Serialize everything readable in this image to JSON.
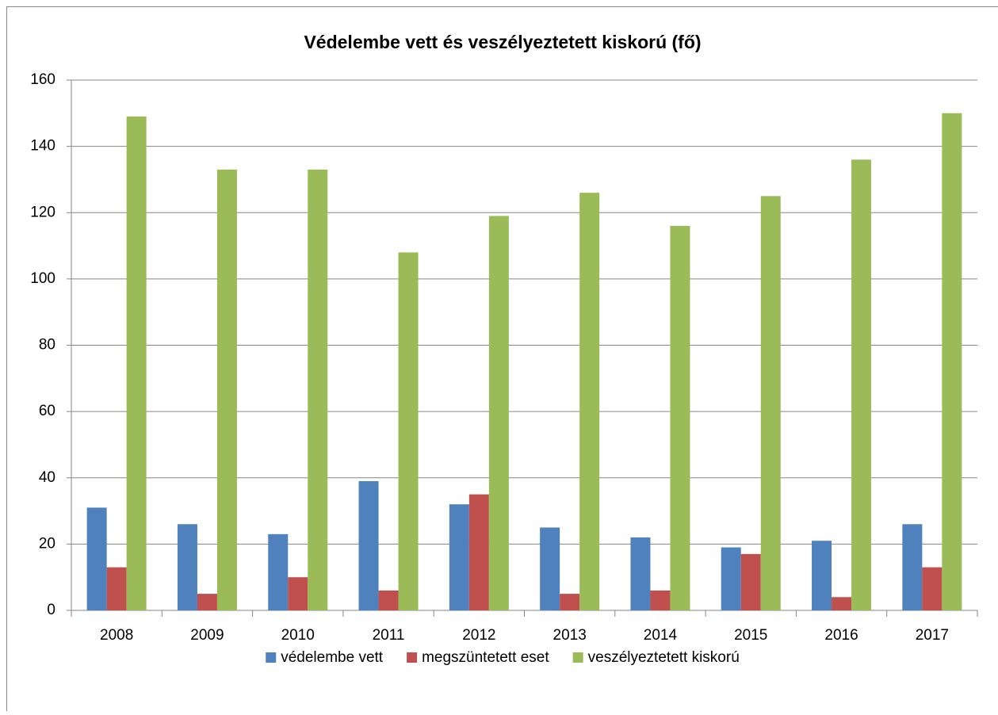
{
  "chart_data": {
    "type": "bar",
    "title": "Védelembe vett és veszélyeztetett kiskorú (fő)",
    "categories": [
      "2008",
      "2009",
      "2010",
      "2011",
      "2012",
      "2013",
      "2014",
      "2015",
      "2016",
      "2017"
    ],
    "series": [
      {
        "name": "védelembe vett",
        "color": "#4f81bd",
        "values": [
          31,
          26,
          23,
          39,
          32,
          25,
          22,
          19,
          21,
          26
        ]
      },
      {
        "name": "megszüntetett eset",
        "color": "#c0504d",
        "values": [
          13,
          5,
          10,
          6,
          35,
          5,
          6,
          17,
          4,
          13
        ]
      },
      {
        "name": "veszélyeztetett kiskorú",
        "color": "#9bbb59",
        "values": [
          149,
          133,
          133,
          108,
          119,
          126,
          116,
          125,
          136,
          150
        ]
      }
    ],
    "ylim": [
      0,
      160
    ],
    "yticks": [
      0,
      20,
      40,
      60,
      80,
      100,
      120,
      140,
      160
    ],
    "grid": true,
    "legend": "bottom"
  }
}
